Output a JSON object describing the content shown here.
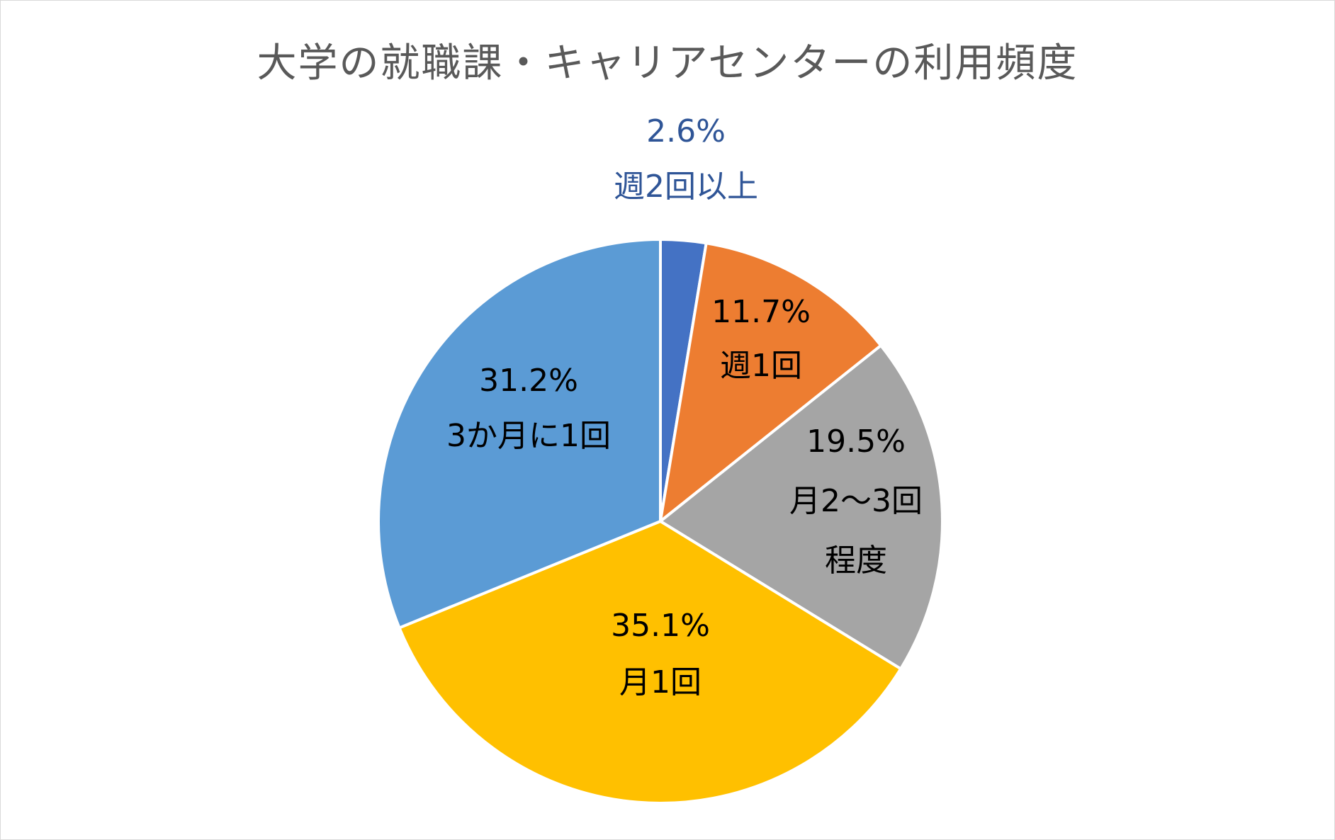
{
  "chart_data": {
    "type": "pie",
    "title": "大学の就職課・キャリアセンターの利用頻度",
    "start_angle_deg": 0,
    "direction": "clockwise",
    "legend": "none",
    "slices": [
      {
        "label": "週2回以上",
        "label_lines": [
          "週2回以上"
        ],
        "value": 2.6,
        "value_text": "2.6%",
        "color": "#4472C4",
        "label_color": "#2F5597"
      },
      {
        "label": "週1回",
        "label_lines": [
          "週1回"
        ],
        "value": 11.7,
        "value_text": "11.7%",
        "color": "#ED7D31",
        "label_color": "#000000"
      },
      {
        "label": "月2〜3回程度",
        "label_lines": [
          "月2〜3回",
          "程度"
        ],
        "value": 19.5,
        "value_text": "19.5%",
        "color": "#A5A5A5",
        "label_color": "#000000"
      },
      {
        "label": "月1回",
        "label_lines": [
          "月1回"
        ],
        "value": 35.1,
        "value_text": "35.1%",
        "color": "#FFC000",
        "label_color": "#000000"
      },
      {
        "label": "3か月に1回",
        "label_lines": [
          "3か月に1回"
        ],
        "value": 31.2,
        "value_text": "31.2%",
        "color": "#5B9BD5",
        "label_color": "#000000"
      }
    ]
  }
}
